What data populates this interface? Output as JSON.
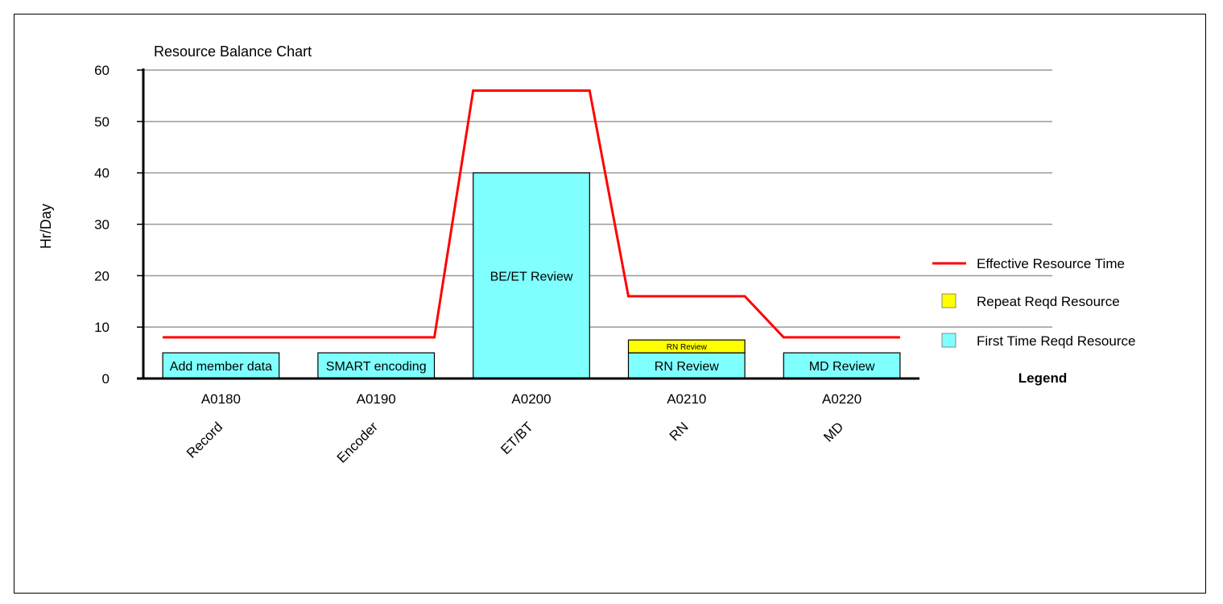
{
  "chart_data": {
    "type": "bar",
    "title": "Resource Balance Chart",
    "ylabel": "Hr/Day",
    "xlabel": "",
    "ylim": [
      0,
      60
    ],
    "yticks": [
      0,
      10,
      20,
      30,
      40,
      50,
      60
    ],
    "grid": true,
    "categories": [
      "A0180",
      "A0190",
      "A0200",
      "A0210",
      "A0220"
    ],
    "roles": [
      "Record",
      "Encoder",
      "ET/BT",
      "RN",
      "MD"
    ],
    "series": [
      {
        "name": "First Time Reqd Resource",
        "color": "#80ffff",
        "values": [
          5,
          5,
          40,
          5,
          5
        ],
        "bar_labels": [
          "Add member data",
          "SMART encoding",
          "BE/ET Review",
          "RN Review",
          "MD Review"
        ]
      },
      {
        "name": "Repeat Reqd Resource",
        "color": "#ffff00",
        "values": [
          0,
          0,
          0,
          2.5,
          0
        ],
        "bar_labels": [
          "",
          "",
          "",
          "RN Review",
          ""
        ]
      }
    ],
    "line": {
      "name": "Effective Resource Time",
      "color": "#ff0000",
      "values": [
        8,
        8,
        56,
        16,
        8
      ]
    },
    "legend": {
      "title": "Legend",
      "placement": "right",
      "entries": [
        "Effective Resource Time",
        "Repeat Reqd Resource",
        "First Time Reqd Resource"
      ]
    }
  }
}
